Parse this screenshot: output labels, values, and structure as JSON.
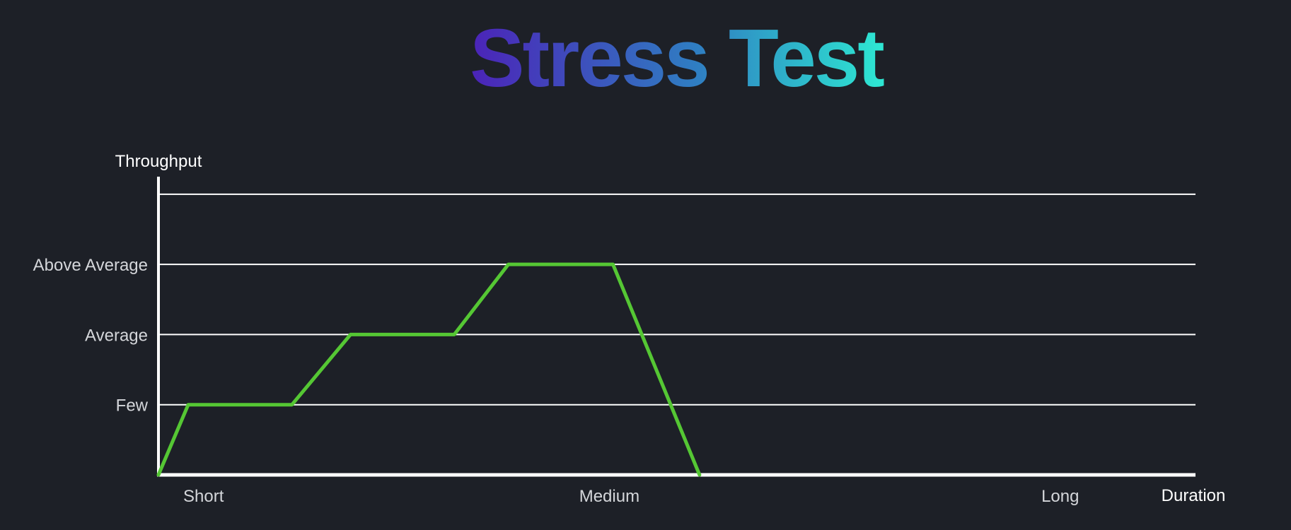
{
  "chart_data": {
    "type": "line",
    "title": "Stress Test",
    "title_gradient": [
      "#4b24b8",
      "#2f7ec2",
      "#2ee6d2"
    ],
    "ylabel": "Throughput",
    "xlabel": "Duration",
    "y_levels": [
      {
        "label": "Few",
        "value": 1
      },
      {
        "label": "Average",
        "value": 2
      },
      {
        "label": "Above Average",
        "value": 3
      },
      {
        "label": "",
        "value": 4
      }
    ],
    "x_ticks": [
      {
        "label": "Short",
        "value": 0.5
      },
      {
        "label": "Medium",
        "value": 5
      },
      {
        "label": "Long",
        "value": 10
      }
    ],
    "xlim": [
      0,
      11.5
    ],
    "ylim": [
      0,
      4.25
    ],
    "grid": true,
    "colors": {
      "background": "#1d2027",
      "axis": "#ffffff",
      "grid": "#ffffff",
      "line": "#55c734"
    },
    "series": [
      {
        "x": [
          0,
          0.33,
          1.48,
          2.13,
          3.28,
          3.88,
          5.04,
          6.0
        ],
        "y": [
          0,
          1,
          1,
          2,
          2,
          3,
          3,
          0
        ]
      }
    ]
  }
}
